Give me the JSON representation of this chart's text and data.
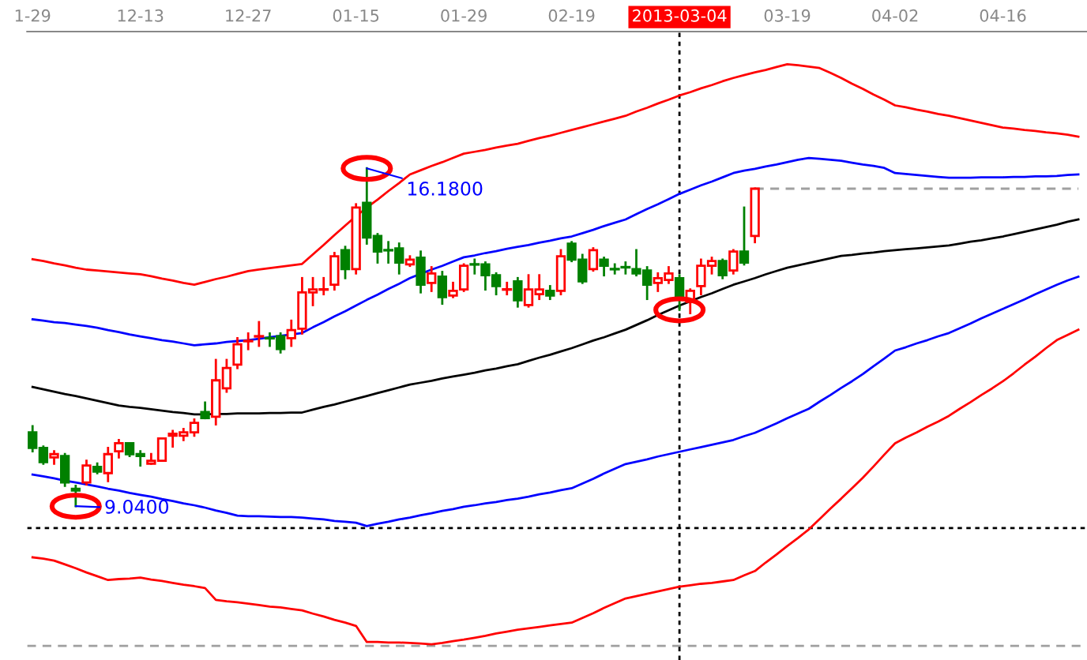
{
  "chart_data": {
    "type": "candlestick",
    "categories": [
      "1-29",
      null,
      null,
      null,
      null,
      null,
      null,
      null,
      null,
      null,
      "12-13",
      null,
      null,
      null,
      null,
      null,
      null,
      null,
      null,
      null,
      "12-27",
      null,
      null,
      null,
      null,
      null,
      null,
      null,
      null,
      null,
      "01-15",
      null,
      null,
      null,
      null,
      null,
      null,
      null,
      null,
      null,
      "01-29",
      null,
      null,
      null,
      null,
      null,
      null,
      null,
      null,
      null,
      "02-19",
      null,
      null,
      null,
      null,
      null,
      null,
      null,
      null,
      null,
      "2013-03-04",
      null,
      null,
      null,
      null,
      null,
      null,
      null,
      null,
      null,
      "03-19",
      null,
      null,
      null,
      null,
      null,
      null,
      null,
      null,
      null,
      "04-02",
      null,
      null,
      null,
      null,
      null,
      null,
      null,
      null,
      null,
      "04-16",
      null,
      null,
      null,
      null,
      null,
      null,
      null
    ],
    "ohlc": [
      [
        10.6,
        10.73,
        10.2,
        10.27
      ],
      [
        10.27,
        10.3,
        9.94,
        9.97
      ],
      [
        10.07,
        10.2,
        9.94,
        10.14
      ],
      [
        10.1,
        10.14,
        9.47,
        9.54
      ],
      [
        9.41,
        9.47,
        9.04,
        9.37
      ],
      [
        9.54,
        10.0,
        9.5,
        9.9
      ],
      [
        9.87,
        9.94,
        9.74,
        9.77
      ],
      [
        9.74,
        10.27,
        9.57,
        10.14
      ],
      [
        10.2,
        10.44,
        10.07,
        10.37
      ],
      [
        10.37,
        10.37,
        10.1,
        10.14
      ],
      [
        10.14,
        10.2,
        9.9,
        10.1
      ],
      [
        9.94,
        10.14,
        9.94,
        10.0
      ],
      [
        10.0,
        10.47,
        10.0,
        10.47
      ],
      [
        10.53,
        10.63,
        10.3,
        10.57
      ],
      [
        10.53,
        10.67,
        10.44,
        10.6
      ],
      [
        10.6,
        10.87,
        10.53,
        10.8
      ],
      [
        11.03,
        11.23,
        10.9,
        10.9
      ],
      [
        10.93,
        12.13,
        10.77,
        11.7
      ],
      [
        11.53,
        12.13,
        11.46,
        11.96
      ],
      [
        12.03,
        12.59,
        11.96,
        12.46
      ],
      [
        12.53,
        12.69,
        12.36,
        12.53
      ],
      [
        12.63,
        12.93,
        12.43,
        12.63
      ],
      [
        12.59,
        12.69,
        12.43,
        12.59
      ],
      [
        12.63,
        12.69,
        12.29,
        12.36
      ],
      [
        12.59,
        12.96,
        12.43,
        12.76
      ],
      [
        12.79,
        13.86,
        12.69,
        13.56
      ],
      [
        13.56,
        13.86,
        13.29,
        13.62
      ],
      [
        13.62,
        13.86,
        13.52,
        13.62
      ],
      [
        13.72,
        14.39,
        13.62,
        14.32
      ],
      [
        14.45,
        14.52,
        13.86,
        14.05
      ],
      [
        14.05,
        15.42,
        13.96,
        15.35
      ],
      [
        15.45,
        16.18,
        14.59,
        14.72
      ],
      [
        14.75,
        14.79,
        14.19,
        14.42
      ],
      [
        14.45,
        14.62,
        14.19,
        14.45
      ],
      [
        14.49,
        14.59,
        13.96,
        14.19
      ],
      [
        14.15,
        14.32,
        14.12,
        14.25
      ],
      [
        14.29,
        14.42,
        13.56,
        13.72
      ],
      [
        13.76,
        14.09,
        13.59,
        13.96
      ],
      [
        13.89,
        13.99,
        13.32,
        13.46
      ],
      [
        13.49,
        13.76,
        13.46,
        13.59
      ],
      [
        13.62,
        14.15,
        13.59,
        14.12
      ],
      [
        14.15,
        14.25,
        13.96,
        14.15
      ],
      [
        14.15,
        14.19,
        13.62,
        13.92
      ],
      [
        13.92,
        13.96,
        13.52,
        13.69
      ],
      [
        13.62,
        13.76,
        13.52,
        13.62
      ],
      [
        13.79,
        13.86,
        13.26,
        13.39
      ],
      [
        13.29,
        13.92,
        13.26,
        13.62
      ],
      [
        13.52,
        13.92,
        13.42,
        13.62
      ],
      [
        13.59,
        13.69,
        13.42,
        13.49
      ],
      [
        13.59,
        14.45,
        13.52,
        14.32
      ],
      [
        14.59,
        14.62,
        14.22,
        14.25
      ],
      [
        14.25,
        14.35,
        13.76,
        13.79
      ],
      [
        14.05,
        14.49,
        14.02,
        14.45
      ],
      [
        14.25,
        14.29,
        13.92,
        14.12
      ],
      [
        14.05,
        14.15,
        13.96,
        14.05
      ],
      [
        14.09,
        14.19,
        13.96,
        14.09
      ],
      [
        14.05,
        14.45,
        13.92,
        13.96
      ],
      [
        14.02,
        14.09,
        13.42,
        13.72
      ],
      [
        13.76,
        13.96,
        13.59,
        13.86
      ],
      [
        13.82,
        14.09,
        13.76,
        13.96
      ],
      [
        13.86,
        13.92,
        13.19,
        13.46
      ],
      [
        13.36,
        13.62,
        13.12,
        13.59
      ],
      [
        13.69,
        14.25,
        13.52,
        14.12
      ],
      [
        14.12,
        14.29,
        13.96,
        14.22
      ],
      [
        14.22,
        14.25,
        13.86,
        13.92
      ],
      [
        14.02,
        14.45,
        13.96,
        14.42
      ],
      [
        14.42,
        15.35,
        14.15,
        14.19
      ],
      [
        14.75,
        15.75,
        14.62,
        15.75
      ],
      null,
      null,
      null,
      null,
      null,
      null,
      null,
      null,
      null,
      null,
      null,
      null,
      null,
      null,
      null,
      null,
      null,
      null,
      null,
      null,
      null,
      null,
      null,
      null,
      null,
      null,
      null,
      null,
      null,
      null
    ],
    "colors": [
      "#008000",
      "#008000",
      "#ff0000",
      "#008000",
      "#008000",
      "#ff0000",
      "#008000",
      "#ff0000",
      "#ff0000",
      "#008000",
      "#008000",
      "#ff0000",
      "#ff0000",
      "#ff0000",
      "#ff0000",
      "#ff0000",
      "#008000",
      "#ff0000",
      "#ff0000",
      "#ff0000",
      "#ff0000",
      "#ff0000",
      "#008000",
      "#008000",
      "#ff0000",
      "#ff0000",
      "#ff0000",
      "#ff0000",
      "#ff0000",
      "#008000",
      "#ff0000",
      "#008000",
      "#008000",
      "#008000",
      "#008000",
      "#ff0000",
      "#008000",
      "#ff0000",
      "#008000",
      "#ff0000",
      "#ff0000",
      "#008000",
      "#008000",
      "#008000",
      "#ff0000",
      "#008000",
      "#ff0000",
      "#ff0000",
      "#008000",
      "#ff0000",
      "#008000",
      "#008000",
      "#ff0000",
      "#008000",
      "#008000",
      "#008000",
      "#008000",
      "#008000",
      "#ff0000",
      "#ff0000",
      "#008000",
      "#ff0000",
      "#ff0000",
      "#ff0000",
      "#008000",
      "#ff0000",
      "#008000",
      "#ff0000",
      null,
      null,
      null,
      null,
      null,
      null,
      null,
      null,
      null,
      null,
      null,
      null,
      null,
      null,
      null,
      null,
      null,
      null,
      null,
      null,
      null,
      null,
      null,
      null,
      null,
      null,
      null,
      null,
      null,
      null
    ],
    "series": [
      {
        "type": "line",
        "color": "#ff0000",
        "values": [
          14.26,
          14.22,
          14.17,
          14.13,
          14.08,
          14.04,
          14.02,
          14.0,
          13.98,
          13.96,
          13.94,
          13.9,
          13.85,
          13.81,
          13.76,
          13.72,
          13.78,
          13.84,
          13.89,
          13.95,
          14.01,
          14.04,
          14.07,
          14.1,
          14.13,
          14.16,
          14.36,
          14.56,
          14.77,
          14.97,
          15.17,
          15.35,
          15.52,
          15.7,
          15.87,
          16.05,
          16.14,
          16.23,
          16.31,
          16.4,
          16.49,
          16.53,
          16.57,
          16.62,
          16.66,
          16.7,
          16.76,
          16.82,
          16.87,
          16.93,
          16.99,
          17.05,
          17.11,
          17.17,
          17.23,
          17.29,
          17.38,
          17.46,
          17.55,
          17.63,
          17.72,
          17.79,
          17.87,
          17.94,
          18.02,
          18.09,
          18.15,
          18.21,
          18.26,
          18.32,
          18.38,
          18.36,
          18.33,
          18.3,
          18.2,
          18.09,
          17.97,
          17.86,
          17.74,
          17.63,
          17.51,
          17.47,
          17.42,
          17.38,
          17.33,
          17.29,
          17.24,
          17.19,
          17.14,
          17.09,
          17.04,
          17.02,
          16.99,
          16.97,
          16.94,
          16.92,
          16.89,
          16.85
        ]
      },
      {
        "type": "line",
        "color": "#0000ff",
        "values": [
          12.99,
          12.96,
          12.93,
          12.91,
          12.88,
          12.85,
          12.81,
          12.76,
          12.72,
          12.67,
          12.63,
          12.59,
          12.55,
          12.52,
          12.48,
          12.44,
          12.46,
          12.48,
          12.51,
          12.53,
          12.55,
          12.58,
          12.61,
          12.64,
          12.67,
          12.7,
          12.82,
          12.93,
          13.05,
          13.16,
          13.28,
          13.4,
          13.51,
          13.63,
          13.74,
          13.86,
          13.95,
          14.04,
          14.12,
          14.21,
          14.3,
          14.34,
          14.39,
          14.43,
          14.48,
          14.52,
          14.56,
          14.61,
          14.65,
          14.7,
          14.74,
          14.81,
          14.88,
          14.96,
          15.03,
          15.1,
          15.21,
          15.32,
          15.42,
          15.53,
          15.64,
          15.73,
          15.82,
          15.9,
          15.99,
          16.08,
          16.13,
          16.17,
          16.22,
          16.26,
          16.31,
          16.36,
          16.4,
          16.38,
          16.36,
          16.34,
          16.3,
          16.26,
          16.23,
          16.19,
          16.08,
          16.06,
          16.04,
          16.02,
          16.0,
          15.98,
          15.98,
          15.98,
          15.99,
          15.99,
          15.99,
          16.0,
          16.0,
          16.01,
          16.01,
          16.02,
          16.04,
          16.05
        ]
      },
      {
        "type": "line",
        "color": "#000000",
        "values": [
          11.56,
          11.51,
          11.46,
          11.41,
          11.37,
          11.32,
          11.27,
          11.22,
          11.17,
          11.14,
          11.12,
          11.09,
          11.06,
          11.03,
          11.01,
          10.98,
          10.98,
          10.99,
          10.99,
          11.0,
          11.0,
          11.0,
          11.01,
          11.01,
          11.02,
          11.02,
          11.08,
          11.14,
          11.19,
          11.25,
          11.31,
          11.37,
          11.43,
          11.49,
          11.55,
          11.61,
          11.65,
          11.69,
          11.74,
          11.78,
          11.82,
          11.86,
          11.91,
          11.95,
          12.0,
          12.04,
          12.11,
          12.18,
          12.24,
          12.31,
          12.38,
          12.46,
          12.54,
          12.61,
          12.69,
          12.77,
          12.87,
          12.97,
          13.08,
          13.18,
          13.28,
          13.37,
          13.46,
          13.54,
          13.63,
          13.72,
          13.79,
          13.86,
          13.94,
          14.01,
          14.08,
          14.13,
          14.18,
          14.23,
          14.28,
          14.33,
          14.35,
          14.38,
          14.4,
          14.43,
          14.45,
          14.47,
          14.49,
          14.51,
          14.53,
          14.55,
          14.59,
          14.63,
          14.66,
          14.7,
          14.74,
          14.79,
          14.84,
          14.89,
          14.94,
          14.99,
          15.05,
          15.1
        ]
      },
      {
        "type": "line",
        "color": "#0000ff",
        "values": [
          9.71,
          9.67,
          9.63,
          9.58,
          9.54,
          9.5,
          9.46,
          9.41,
          9.37,
          9.32,
          9.28,
          9.24,
          9.19,
          9.15,
          9.1,
          9.06,
          9.01,
          8.95,
          8.9,
          8.84,
          8.83,
          8.83,
          8.82,
          8.81,
          8.81,
          8.8,
          8.78,
          8.76,
          8.73,
          8.71,
          8.69,
          8.62,
          8.67,
          8.71,
          8.76,
          8.8,
          8.85,
          8.89,
          8.94,
          8.98,
          9.03,
          9.06,
          9.1,
          9.13,
          9.17,
          9.2,
          9.24,
          9.29,
          9.33,
          9.38,
          9.42,
          9.52,
          9.62,
          9.73,
          9.83,
          9.93,
          9.98,
          10.03,
          10.09,
          10.14,
          10.19,
          10.24,
          10.29,
          10.34,
          10.39,
          10.44,
          10.52,
          10.59,
          10.69,
          10.79,
          10.9,
          11.0,
          11.1,
          11.25,
          11.39,
          11.54,
          11.68,
          11.83,
          12.0,
          12.16,
          12.33,
          12.4,
          12.48,
          12.55,
          12.63,
          12.7,
          12.8,
          12.9,
          13.01,
          13.11,
          13.21,
          13.31,
          13.41,
          13.52,
          13.62,
          13.72,
          13.81,
          13.89
        ]
      },
      {
        "type": "line",
        "color": "#ff0000",
        "values": [
          7.96,
          7.93,
          7.89,
          7.81,
          7.73,
          7.64,
          7.56,
          7.48,
          7.5,
          7.51,
          7.53,
          7.49,
          7.46,
          7.42,
          7.38,
          7.35,
          7.31,
          7.06,
          7.03,
          7.01,
          6.98,
          6.95,
          6.92,
          6.9,
          6.87,
          6.84,
          6.77,
          6.71,
          6.64,
          6.58,
          6.51,
          6.17,
          6.17,
          6.16,
          6.16,
          6.15,
          6.14,
          6.12,
          6.15,
          6.19,
          6.22,
          6.26,
          6.3,
          6.35,
          6.39,
          6.43,
          6.46,
          6.49,
          6.52,
          6.55,
          6.58,
          6.68,
          6.78,
          6.89,
          6.99,
          7.09,
          7.14,
          7.19,
          7.24,
          7.29,
          7.34,
          7.37,
          7.4,
          7.42,
          7.45,
          7.48,
          7.58,
          7.67,
          7.85,
          8.02,
          8.2,
          8.37,
          8.55,
          8.77,
          8.99,
          9.2,
          9.42,
          9.64,
          9.88,
          10.13,
          10.37,
          10.49,
          10.6,
          10.72,
          10.83,
          10.95,
          11.1,
          11.24,
          11.39,
          11.53,
          11.68,
          11.85,
          12.03,
          12.2,
          12.38,
          12.55,
          12.66,
          12.77
        ]
      },
      {
        "type": "line",
        "color": "#a0a0a0",
        "line_style": "dashed",
        "values": [
          null,
          null,
          null,
          null,
          null,
          null,
          null,
          null,
          null,
          null,
          null,
          null,
          null,
          null,
          null,
          null,
          null,
          null,
          null,
          null,
          null,
          null,
          null,
          null,
          null,
          null,
          null,
          null,
          null,
          null,
          null,
          null,
          null,
          null,
          null,
          null,
          null,
          null,
          null,
          null,
          null,
          null,
          null,
          null,
          null,
          null,
          null,
          null,
          null,
          null,
          null,
          null,
          null,
          null,
          null,
          null,
          null,
          null,
          null,
          null,
          null,
          null,
          null,
          null,
          null,
          null,
          null,
          15.75,
          15.75,
          15.75,
          15.75,
          15.75,
          15.75,
          15.75,
          15.75,
          15.75,
          15.75,
          15.75,
          15.75,
          15.75,
          15.75,
          15.75,
          15.75,
          15.75,
          15.75,
          15.75,
          15.75,
          15.75,
          15.75,
          15.75,
          15.75,
          15.75,
          15.75,
          15.75,
          15.75,
          15.75,
          15.75,
          15.75
        ]
      }
    ],
    "ylim": [
      5.79,
      19.07
    ],
    "tick_labels": "x",
    "ref_lines": [
      {
        "axis": "y",
        "value": 8.58,
        "color": "#000000",
        "line_style": "dotted"
      },
      {
        "axis": "y",
        "value": 6.09,
        "color": "#a0a0a0",
        "line_style": "dashed"
      },
      {
        "axis": "x",
        "value": "2013-03-04",
        "color": "#000000",
        "line_style": "dotted"
      }
    ],
    "annotations": [
      {
        "text": "16.1800",
        "y": 16.18
      },
      "9.0400"
    ],
    "grid": false
  }
}
